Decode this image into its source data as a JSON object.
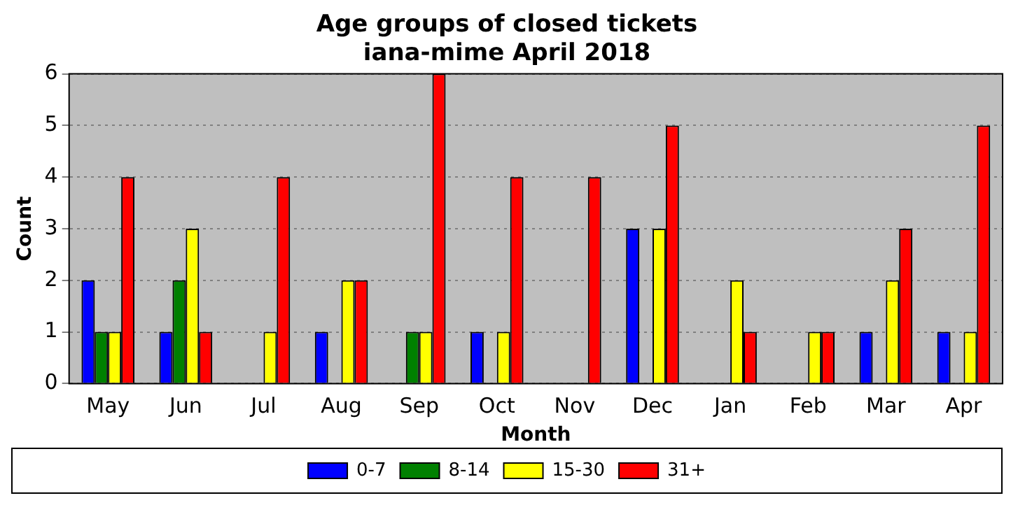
{
  "chart_data": {
    "type": "bar",
    "title": "Age groups of closed tickets\niana-mime April 2018",
    "xlabel": "Month",
    "ylabel": "Count",
    "categories": [
      "May",
      "Jun",
      "Jul",
      "Aug",
      "Sep",
      "Oct",
      "Nov",
      "Dec",
      "Jan",
      "Feb",
      "Mar",
      "Apr"
    ],
    "series": [
      {
        "name": "0-7",
        "color": "#0000ff",
        "values": [
          2,
          1,
          0,
          1,
          0,
          1,
          0,
          3,
          0,
          0,
          1,
          1
        ]
      },
      {
        "name": "8-14",
        "color": "#008000",
        "values": [
          1,
          2,
          0,
          0,
          1,
          0,
          0,
          0,
          0,
          0,
          0,
          0
        ]
      },
      {
        "name": "15-30",
        "color": "#ffff00",
        "values": [
          1,
          3,
          1,
          2,
          1,
          1,
          0,
          3,
          2,
          1,
          2,
          1
        ]
      },
      {
        "name": "31+",
        "color": "#ff0000",
        "values": [
          4,
          1,
          4,
          2,
          6,
          4,
          4,
          5,
          1,
          1,
          3,
          5
        ]
      }
    ],
    "ylim": [
      0,
      6
    ],
    "yticks": [
      0,
      1,
      2,
      3,
      4,
      5,
      6
    ],
    "grid": "y",
    "legend": "bottom"
  }
}
